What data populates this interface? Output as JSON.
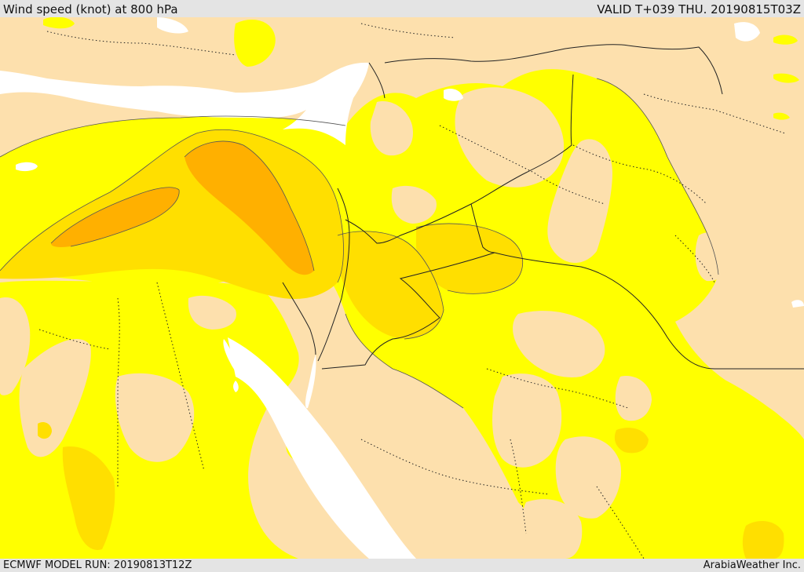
{
  "header": {
    "title": "Wind speed (knot) at 800 hPa",
    "valid": "VALID T+039 THU. 20190815T03Z"
  },
  "footer": {
    "model_run": "ECMWF MODEL RUN: 20190813T12Z",
    "credit": "ArabiaWeather Inc."
  },
  "map": {
    "colors": {
      "sea": "#ffffff",
      "band_lt10": "#fde0ad",
      "band_10_15": "#ffff00",
      "band_15_20": "#ffdf00",
      "band_20_25": "#ffb000",
      "border": "#222222",
      "contour": "#555555"
    }
  }
}
